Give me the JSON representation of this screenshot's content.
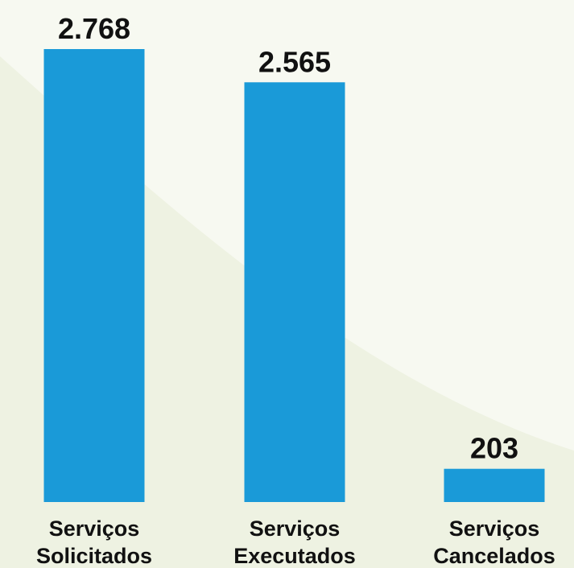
{
  "colors": {
    "bar": "#1a9ad8",
    "background": "#f7f9f1",
    "background_swoosh": "#eef2e2",
    "text": "#111111"
  },
  "chart_data": {
    "type": "bar",
    "categories": [
      [
        "Serviços",
        "Solicitados"
      ],
      [
        "Serviços",
        "Executados"
      ],
      [
        "Serviços",
        "Cancelados"
      ]
    ],
    "values": [
      2768,
      2565,
      203
    ],
    "value_labels": [
      "2.768",
      "2.565",
      "203"
    ],
    "title": "",
    "xlabel": "",
    "ylabel": "",
    "ylim": [
      0,
      2768
    ],
    "grid": false,
    "legend": "none"
  }
}
